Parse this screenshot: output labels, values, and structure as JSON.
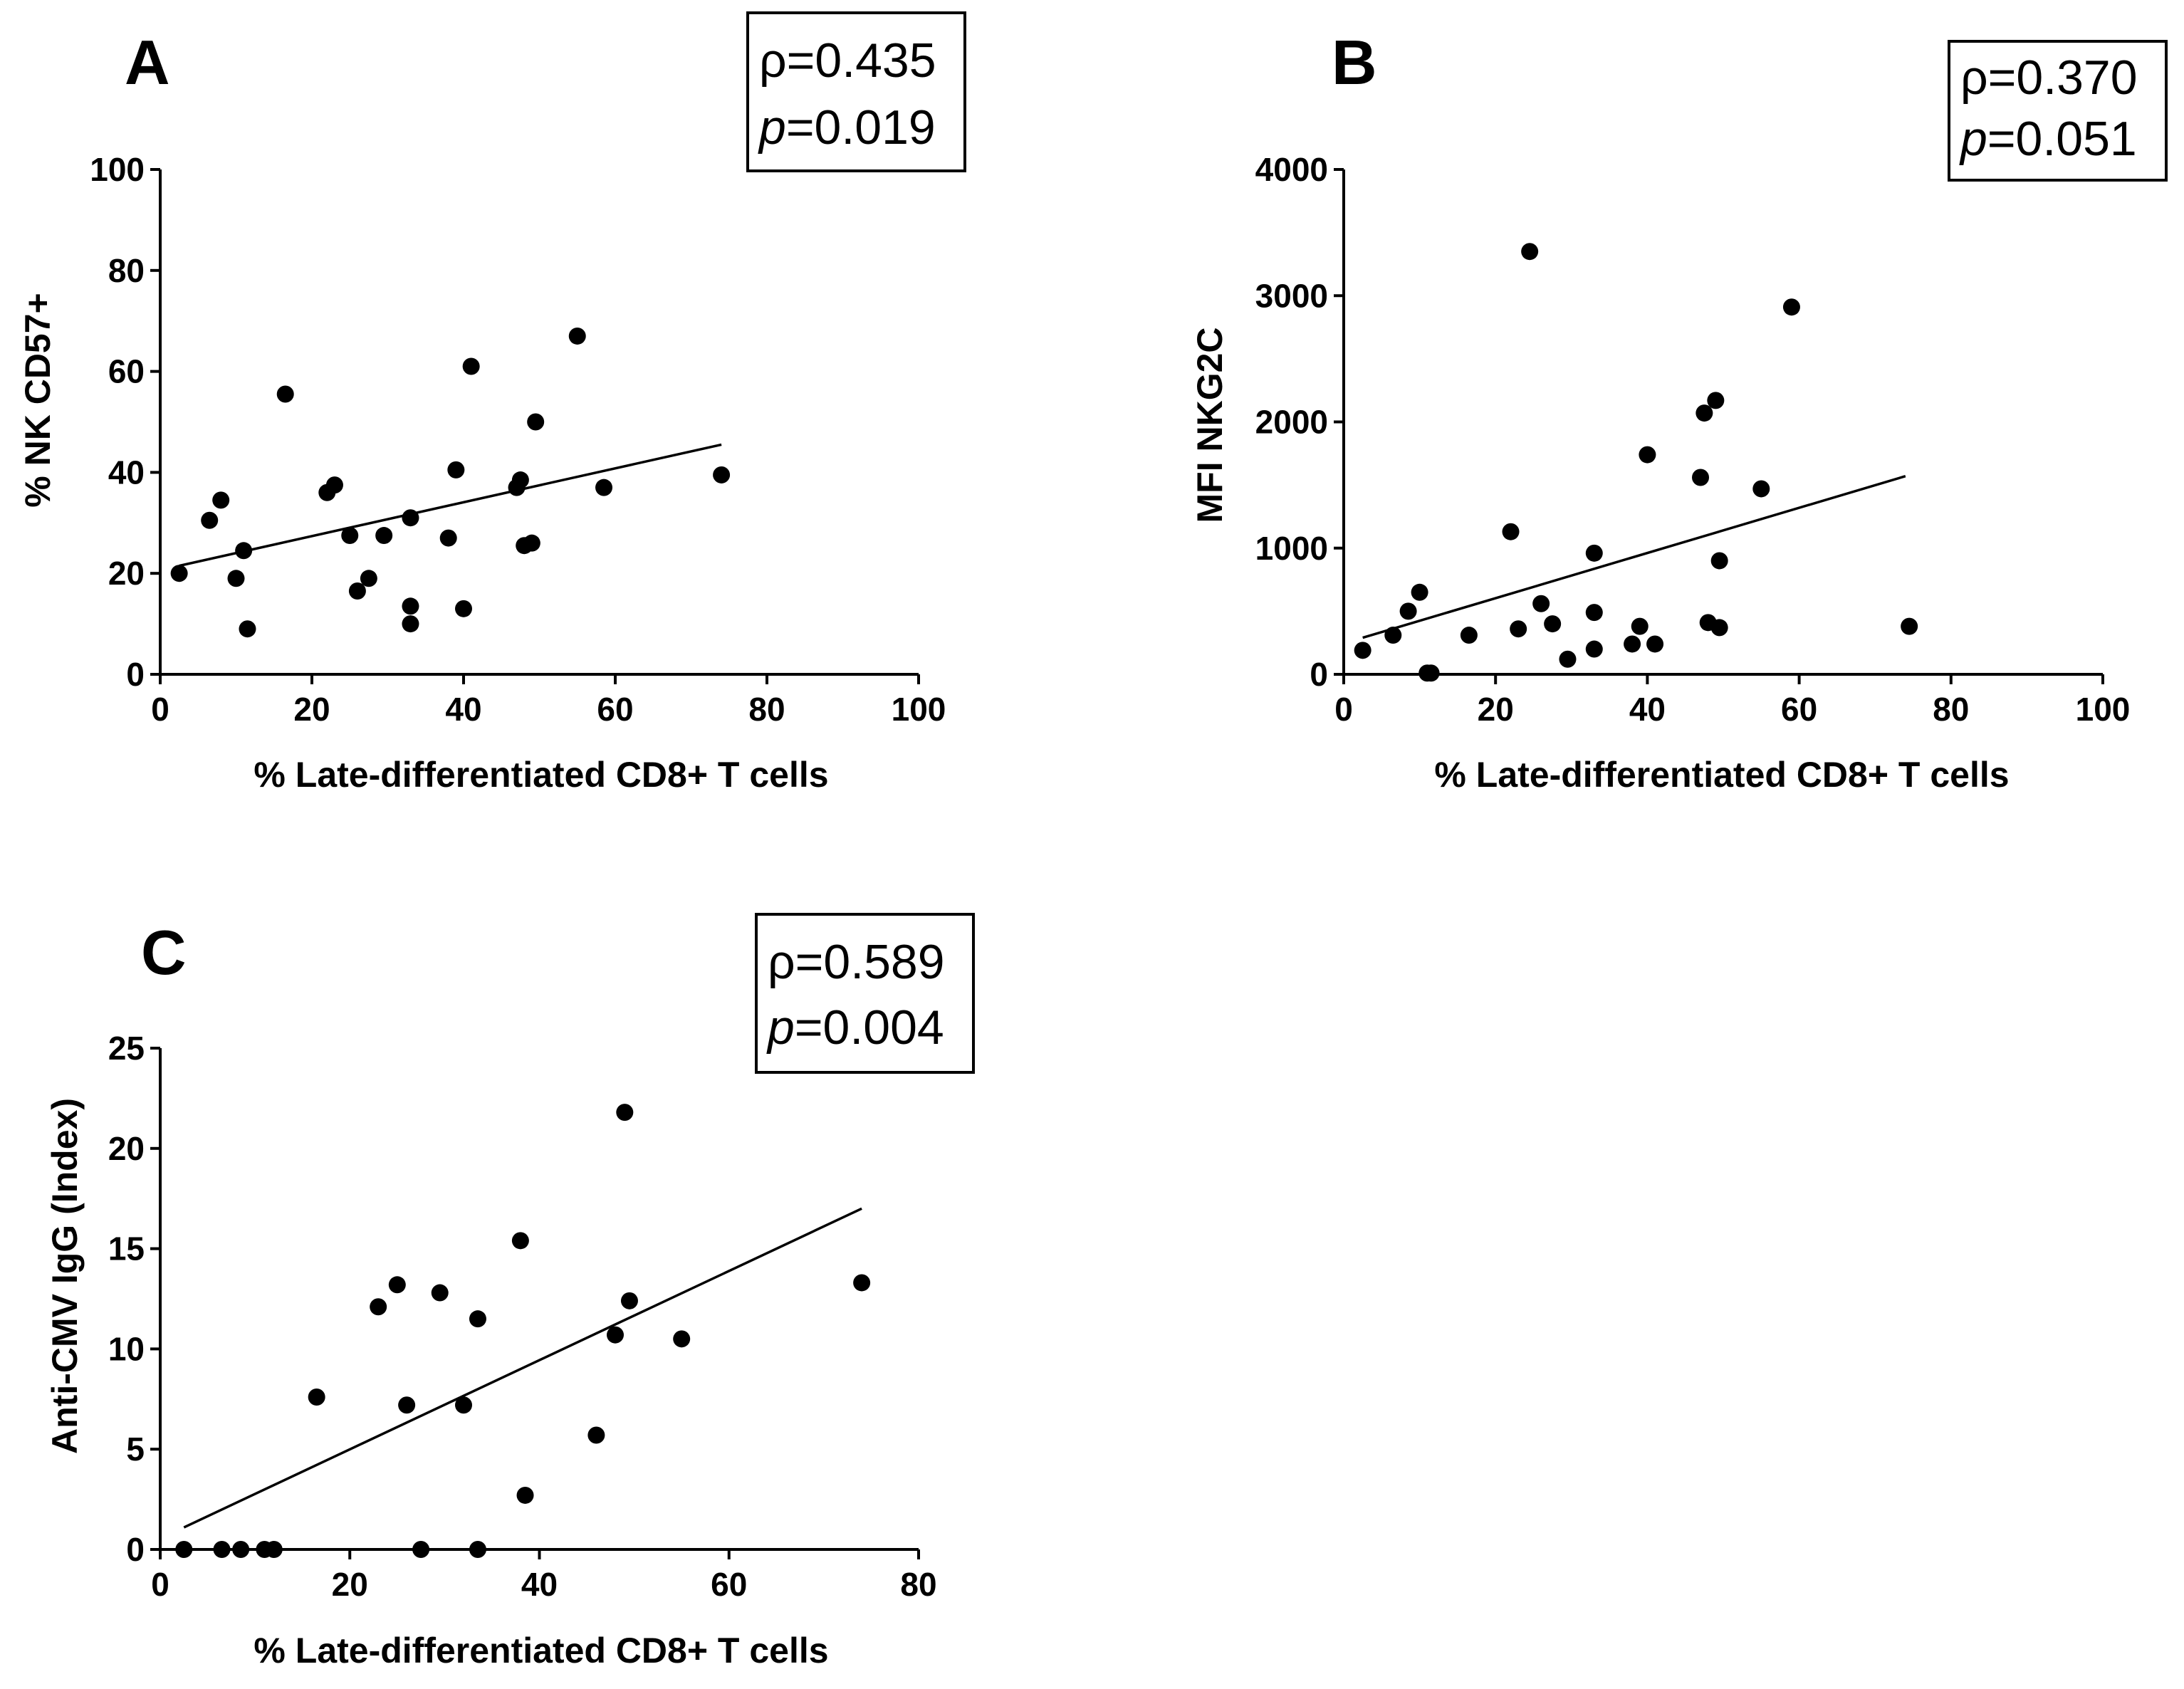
{
  "chart_data": [
    {
      "id": "A",
      "type": "scatter",
      "panel_label": "A",
      "xlabel": "% Late-differentiated CD8+ T cells",
      "ylabel": "% NK CD57+",
      "xlim": [
        0,
        100
      ],
      "ylim": [
        0,
        100
      ],
      "xticks": [
        0,
        20,
        40,
        60,
        80,
        100
      ],
      "yticks": [
        0,
        20,
        40,
        60,
        80,
        100
      ],
      "xtick_labels": [
        "0",
        "20",
        "40",
        "60",
        "80",
        "100"
      ],
      "ytick_labels": [
        "0",
        "20",
        "40",
        "60",
        "80",
        "100"
      ],
      "stats": {
        "rho": "ρ=0.435",
        "p_symbol": "p",
        "p_value": "=0.019"
      },
      "fit_line": [
        [
          2.5,
          21.5
        ],
        [
          74,
          45.5
        ]
      ],
      "points": [
        [
          2.5,
          20
        ],
        [
          6.5,
          30.5
        ],
        [
          8,
          34.5
        ],
        [
          10,
          19
        ],
        [
          11,
          24.5
        ],
        [
          11.5,
          9
        ],
        [
          16.5,
          55.5
        ],
        [
          22,
          36
        ],
        [
          23,
          37.5
        ],
        [
          25,
          27.5
        ],
        [
          26,
          16.5
        ],
        [
          27.5,
          19
        ],
        [
          29.5,
          27.5
        ],
        [
          33,
          31
        ],
        [
          33,
          13.5
        ],
        [
          33,
          10
        ],
        [
          38,
          27
        ],
        [
          39,
          40.5
        ],
        [
          40,
          13
        ],
        [
          41,
          61
        ],
        [
          47,
          37
        ],
        [
          47.5,
          38.5
        ],
        [
          48,
          25.5
        ],
        [
          49,
          26
        ],
        [
          49.5,
          50
        ],
        [
          55,
          67
        ],
        [
          58.5,
          37
        ],
        [
          74,
          39.5
        ]
      ]
    },
    {
      "id": "B",
      "type": "scatter",
      "panel_label": "B",
      "xlabel": "% Late-differentiated CD8+ T cells",
      "ylabel": "MFI NKG2C",
      "xlim": [
        0,
        100
      ],
      "ylim": [
        0,
        4000
      ],
      "xticks": [
        0,
        20,
        40,
        60,
        80,
        100
      ],
      "yticks": [
        0,
        1000,
        2000,
        3000,
        4000
      ],
      "xtick_labels": [
        "0",
        "20",
        "40",
        "60",
        "80",
        "100"
      ],
      "ytick_labels": [
        "0",
        "1000",
        "2000",
        "3000",
        "4000"
      ],
      "stats": {
        "rho": "ρ=0.370",
        "p_symbol": "p",
        "p_value": "=0.051"
      },
      "fit_line": [
        [
          2.5,
          290
        ],
        [
          74,
          1570
        ]
      ],
      "points": [
        [
          2.5,
          190
        ],
        [
          6.5,
          310
        ],
        [
          8.5,
          500
        ],
        [
          10,
          650
        ],
        [
          11,
          10
        ],
        [
          11.5,
          10
        ],
        [
          16.5,
          310
        ],
        [
          22,
          1130
        ],
        [
          23,
          360
        ],
        [
          24.5,
          3350
        ],
        [
          26,
          560
        ],
        [
          27.5,
          400
        ],
        [
          29.5,
          120
        ],
        [
          33,
          960
        ],
        [
          33,
          490
        ],
        [
          33,
          200
        ],
        [
          38,
          240
        ],
        [
          39,
          380
        ],
        [
          40,
          1740
        ],
        [
          41,
          240
        ],
        [
          47,
          1560
        ],
        [
          47.5,
          2070
        ],
        [
          48,
          410
        ],
        [
          49,
          2170
        ],
        [
          49.5,
          900
        ],
        [
          49.5,
          370
        ],
        [
          55,
          1470
        ],
        [
          59,
          2910
        ],
        [
          74.5,
          380
        ]
      ]
    },
    {
      "id": "C",
      "type": "scatter",
      "panel_label": "C",
      "xlabel": "% Late-differentiated CD8+ T cells",
      "ylabel": "Anti-CMV IgG (Index)",
      "xlim": [
        0,
        80
      ],
      "ylim": [
        0,
        25
      ],
      "xticks": [
        0,
        20,
        40,
        60,
        80
      ],
      "yticks": [
        0,
        5,
        10,
        15,
        20,
        25
      ],
      "xtick_labels": [
        "0",
        "20",
        "40",
        "60",
        "80"
      ],
      "ytick_labels": [
        "0",
        "5",
        "10",
        "15",
        "20",
        "25"
      ],
      "stats": {
        "rho": "ρ=0.589",
        "p_symbol": "p",
        "p_value": "=0.004"
      },
      "fit_line": [
        [
          2.5,
          1.1
        ],
        [
          74,
          17
        ]
      ],
      "points": [
        [
          2.5,
          0
        ],
        [
          6.5,
          0
        ],
        [
          8.5,
          0
        ],
        [
          11,
          0
        ],
        [
          12,
          0
        ],
        [
          16.5,
          7.6
        ],
        [
          23,
          12.1
        ],
        [
          25,
          13.2
        ],
        [
          26,
          7.2
        ],
        [
          27.5,
          0
        ],
        [
          29.5,
          12.8
        ],
        [
          32,
          7.2
        ],
        [
          33.5,
          11.5
        ],
        [
          33.5,
          0
        ],
        [
          38,
          15.4
        ],
        [
          38.5,
          2.7
        ],
        [
          46,
          5.7
        ],
        [
          48,
          10.7
        ],
        [
          49,
          21.8
        ],
        [
          49.5,
          12.4
        ],
        [
          55,
          10.5
        ],
        [
          74,
          13.3
        ]
      ]
    }
  ]
}
